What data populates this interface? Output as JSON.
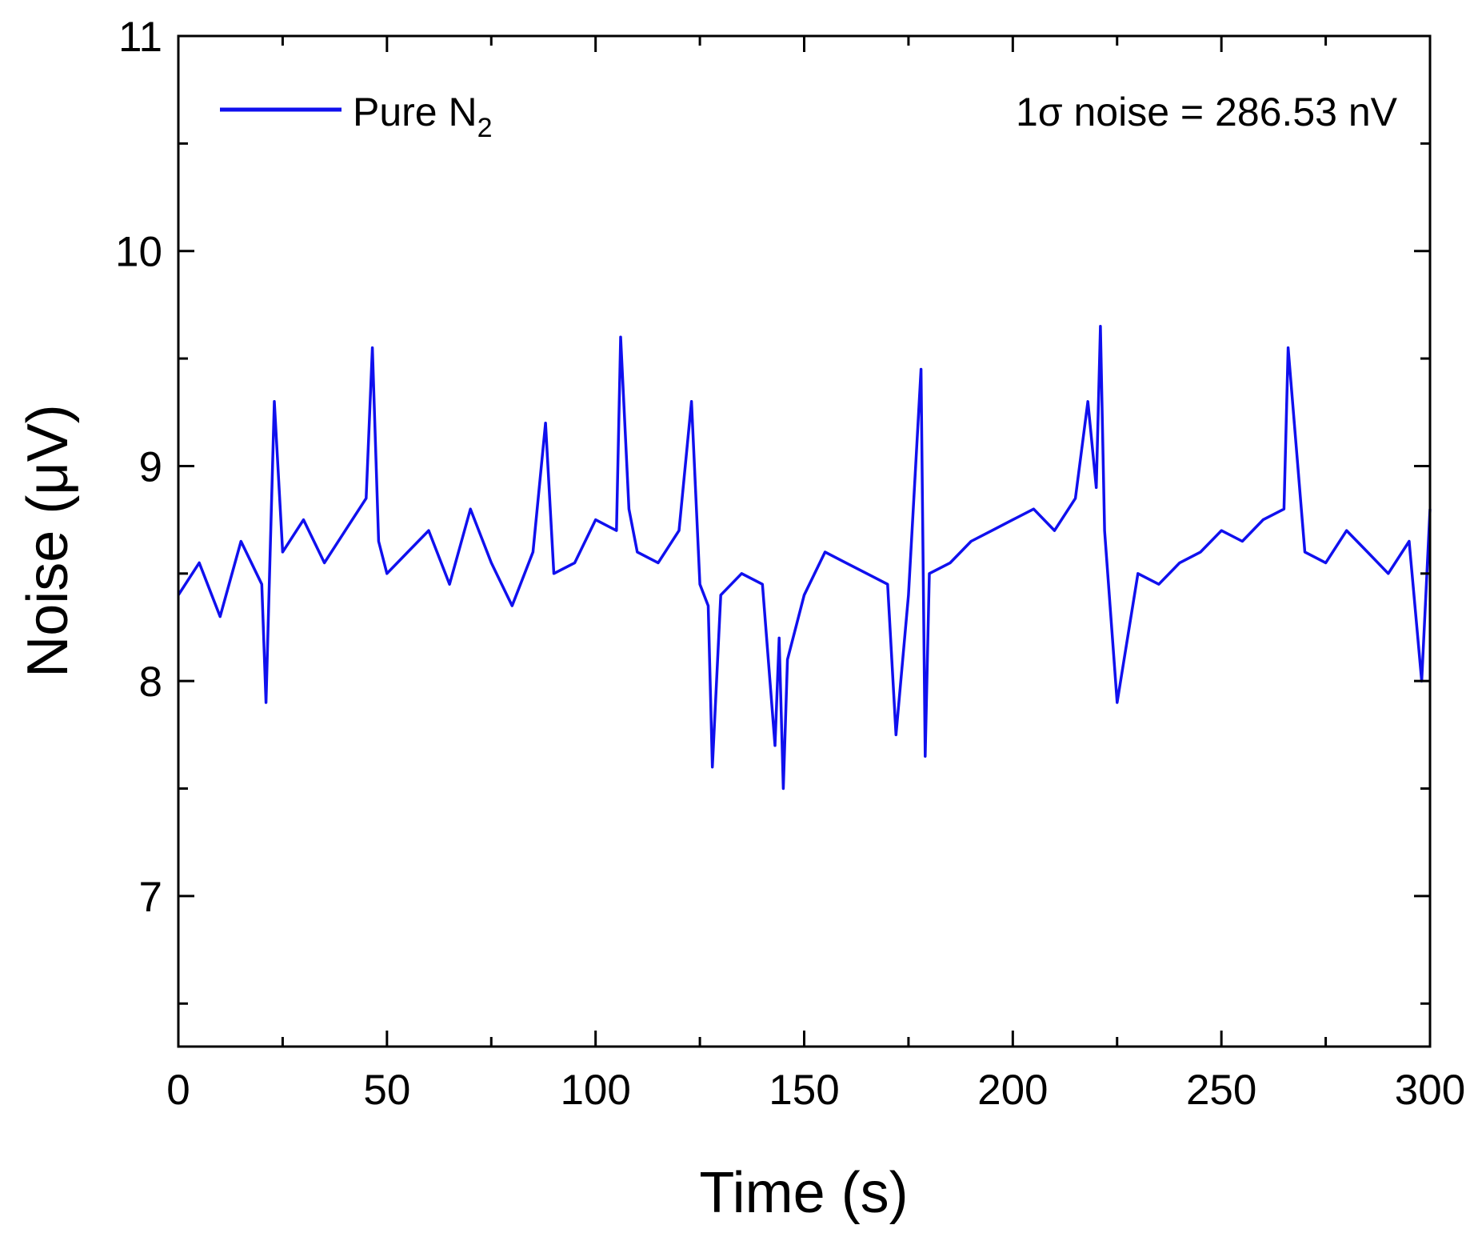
{
  "chart_data": {
    "type": "line",
    "title": "",
    "xlabel": "Time (s)",
    "ylabel": "Noise (μV)",
    "xlim": [
      0,
      300
    ],
    "ylim": [
      6.3,
      11
    ],
    "x_ticks": [
      0,
      50,
      100,
      150,
      200,
      250,
      300
    ],
    "y_ticks": [
      7,
      8,
      9,
      10,
      11
    ],
    "grid": false,
    "legend_position": "top-left",
    "annotation": "1σ noise = 286.53 nV",
    "series": [
      {
        "name": "Pure N2",
        "legend_main": "Pure N",
        "legend_subscript": "2",
        "color": "#1010ee",
        "x": [
          0,
          5,
          10,
          15,
          20,
          21,
          23,
          25,
          30,
          35,
          40,
          45,
          46.5,
          48,
          50,
          55,
          60,
          65,
          70,
          75,
          80,
          85,
          88,
          90,
          95,
          100,
          105,
          106,
          108,
          110,
          115,
          120,
          123,
          125,
          127,
          128,
          130,
          135,
          140,
          143,
          144,
          145,
          146,
          150,
          155,
          160,
          165,
          170,
          172,
          175,
          178,
          179,
          180,
          185,
          190,
          195,
          200,
          205,
          210,
          215,
          218,
          220,
          221,
          222,
          225,
          230,
          235,
          240,
          245,
          250,
          255,
          260,
          265,
          266,
          270,
          275,
          280,
          285,
          290,
          295,
          298,
          300
        ],
        "y": [
          8.4,
          8.55,
          8.3,
          8.65,
          8.45,
          7.9,
          9.3,
          8.6,
          8.75,
          8.55,
          8.7,
          8.85,
          9.55,
          8.65,
          8.5,
          8.6,
          8.7,
          8.45,
          8.8,
          8.55,
          8.35,
          8.6,
          9.2,
          8.5,
          8.55,
          8.75,
          8.7,
          9.6,
          8.8,
          8.6,
          8.55,
          8.7,
          9.3,
          8.45,
          8.35,
          7.6,
          8.4,
          8.5,
          8.45,
          7.7,
          8.2,
          7.5,
          8.1,
          8.4,
          8.6,
          8.55,
          8.5,
          8.45,
          7.75,
          8.4,
          9.45,
          7.65,
          8.5,
          8.55,
          8.65,
          8.7,
          8.75,
          8.8,
          8.7,
          8.85,
          9.3,
          8.9,
          9.65,
          8.7,
          7.9,
          8.5,
          8.45,
          8.55,
          8.6,
          8.7,
          8.65,
          8.75,
          8.8,
          9.55,
          8.6,
          8.55,
          8.7,
          8.6,
          8.5,
          8.65,
          8.0,
          8.8
        ]
      }
    ]
  }
}
